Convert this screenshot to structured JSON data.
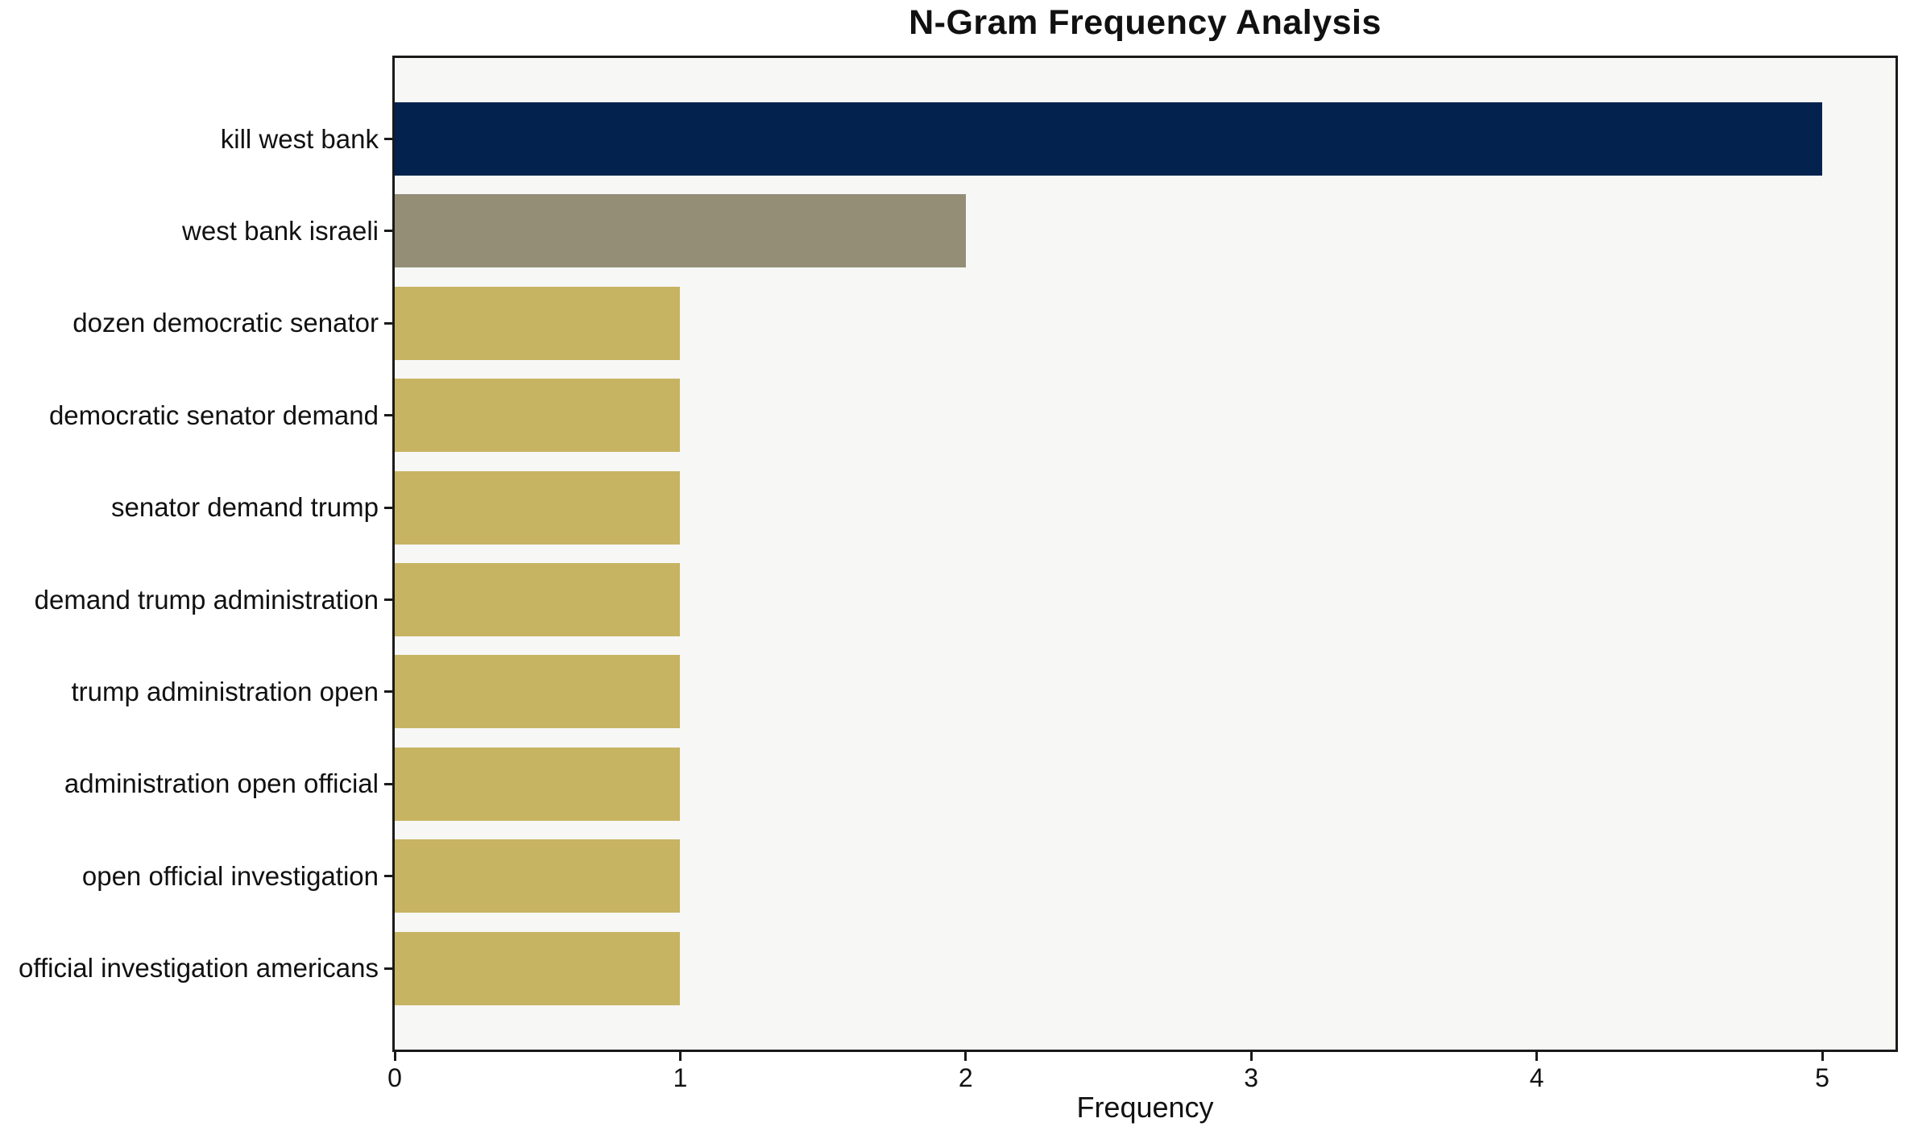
{
  "chart_data": {
    "type": "bar",
    "orientation": "horizontal",
    "title": "N-Gram Frequency Analysis",
    "xlabel": "Frequency",
    "ylabel": "",
    "categories": [
      "kill west bank",
      "west bank israeli",
      "dozen democratic senator",
      "democratic senator demand",
      "senator demand trump",
      "demand trump administration",
      "trump administration open",
      "administration open official",
      "open official investigation",
      "official investigation americans"
    ],
    "values": [
      5,
      2,
      1,
      1,
      1,
      1,
      1,
      1,
      1,
      1
    ],
    "bar_colors": [
      "#03234e",
      "#948e77",
      "#c7b462",
      "#c7b462",
      "#c7b462",
      "#c7b462",
      "#c7b462",
      "#c7b462",
      "#c7b462",
      "#c7b462"
    ],
    "xticks": [
      "0",
      "1",
      "2",
      "3",
      "4",
      "5"
    ],
    "xlim": [
      0,
      5.25
    ],
    "grid": false,
    "legend": null,
    "plot_background": "#f7f7f6",
    "figure_background": "#ffffff",
    "axis_color": "#1a1a1a"
  }
}
